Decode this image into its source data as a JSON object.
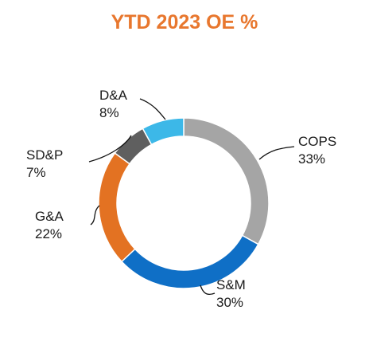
{
  "chart_data": {
    "type": "pie",
    "title": "YTD 2023 OE %",
    "donut": true,
    "slices": [
      {
        "label": "COPS",
        "value": 33,
        "pct_label": "33%",
        "color": "#a5a5a5"
      },
      {
        "label": "S&M",
        "value": 30,
        "pct_label": "30%",
        "color": "#0f6fc6"
      },
      {
        "label": "G&A",
        "value": 22,
        "pct_label": "22%",
        "color": "#e37222"
      },
      {
        "label": "SD&P",
        "value": 7,
        "pct_label": "7%",
        "color": "#5f5f5f"
      },
      {
        "label": "D&A",
        "value": 8,
        "pct_label": "8%",
        "color": "#3cb8e8"
      }
    ],
    "legend": "none",
    "title_color": "#e8772e"
  }
}
